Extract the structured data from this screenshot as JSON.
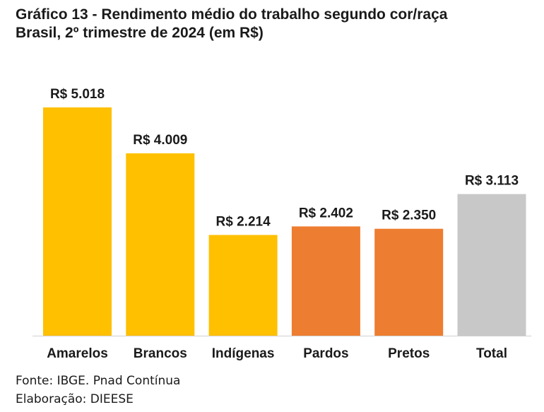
{
  "chart_data": {
    "type": "bar",
    "title": "Gráfico 13 - Rendimento médio do trabalho segundo cor/raça",
    "subtitle": "Brasil, 2º trimestre de 2024 (em R$)",
    "categories": [
      "Amarelos",
      "Brancos",
      "Indígenas",
      "Pardos",
      "Pretos",
      "Total"
    ],
    "values": [
      5018,
      4009,
      2214,
      2402,
      2350,
      3113
    ],
    "value_labels": [
      "R$ 5.018",
      "R$ 4.009",
      "R$ 2.214",
      "R$ 2.402",
      "R$ 2.350",
      "R$ 3.113"
    ],
    "colors": [
      "#FFC000",
      "#FFC000",
      "#FFC000",
      "#ED7D31",
      "#ED7D31",
      "#C8C8C8"
    ],
    "ylim": [
      0,
      5018
    ],
    "grid": false,
    "legend": "none"
  },
  "footer": {
    "source": "Fonte: IBGE. Pnad Contínua",
    "elaboration": "Elaboração: DIEESE"
  }
}
